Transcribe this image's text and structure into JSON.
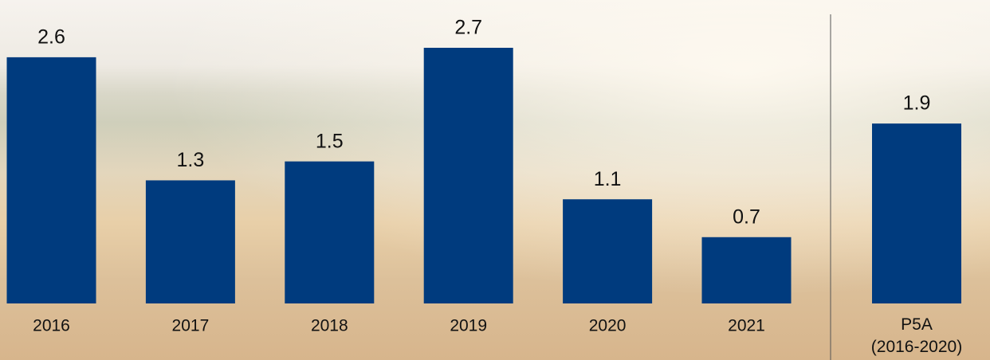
{
  "chart_data": {
    "type": "bar",
    "categories": [
      "2016",
      "2017",
      "2018",
      "2019",
      "2020",
      "2021",
      "P5A (2016-2020)"
    ],
    "values": [
      2.6,
      1.3,
      1.5,
      2.7,
      1.1,
      0.7,
      1.9
    ],
    "color": "#003b7e"
  }
}
